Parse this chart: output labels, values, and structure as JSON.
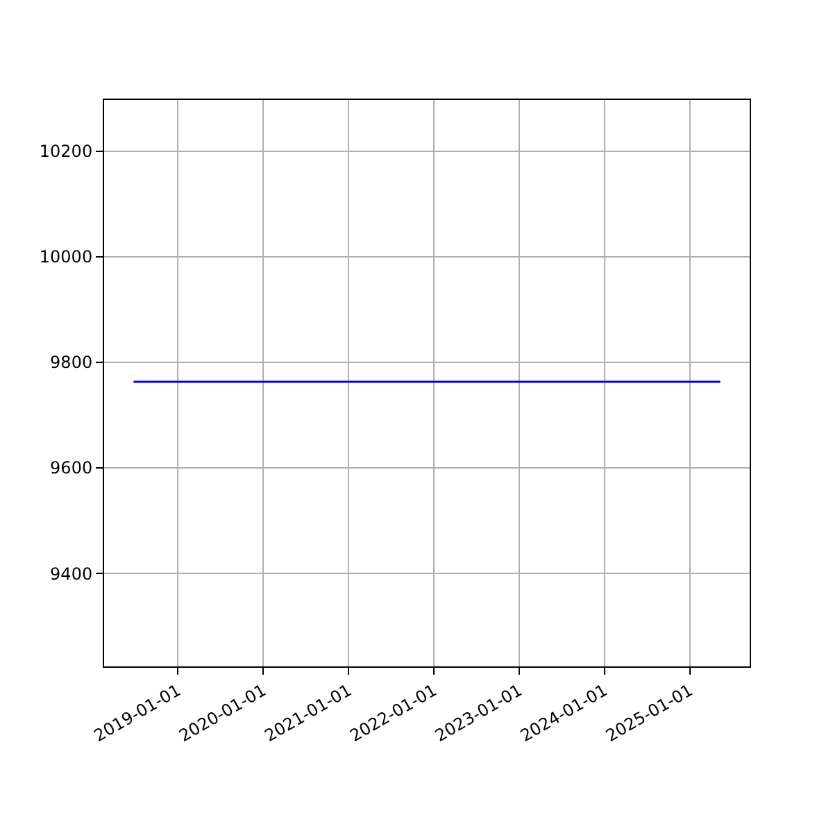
{
  "chart_data": {
    "type": "line",
    "x": [
      "2018-06-25",
      "2025-05-11"
    ],
    "series": [
      {
        "color": "#0000ff",
        "values": [
          9763,
          9763
        ]
      }
    ],
    "xlim": [
      "2018-02-19",
      "2025-09-14"
    ],
    "xticks": [
      {
        "value": "2019-01-01",
        "label": "2019-01-01"
      },
      {
        "value": "2020-01-01",
        "label": "2020-01-01"
      },
      {
        "value": "2021-01-01",
        "label": "2021-01-01"
      },
      {
        "value": "2022-01-01",
        "label": "2022-01-01"
      },
      {
        "value": "2023-01-01",
        "label": "2023-01-01"
      },
      {
        "value": "2024-01-01",
        "label": "2024-01-01"
      },
      {
        "value": "2025-01-01",
        "label": "2025-01-01"
      }
    ],
    "ylim": [
      9224,
      10297
    ],
    "yticks": [
      9400,
      9600,
      9800,
      10000,
      10200
    ],
    "grid": true,
    "legend": false,
    "marker": "none",
    "line_style": "solid"
  }
}
